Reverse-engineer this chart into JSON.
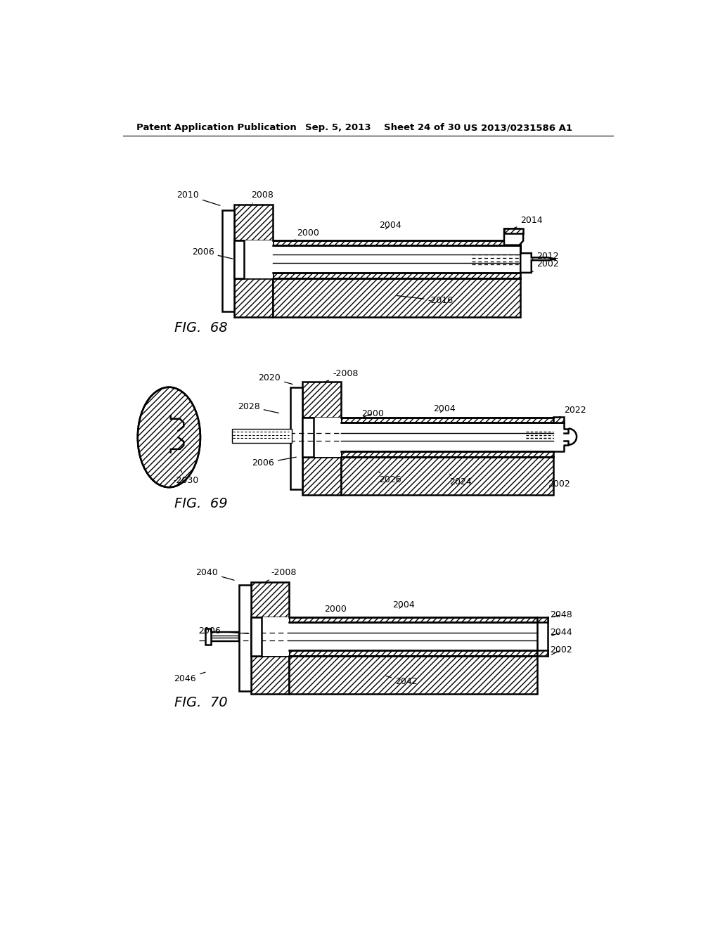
{
  "background_color": "#ffffff",
  "header_text": "Patent Application Publication",
  "header_date": "Sep. 5, 2013",
  "header_sheet": "Sheet 24 of 30",
  "header_patent": "US 2013/0231586 A1",
  "fig68_label": "FIG.  68",
  "fig69_label": "FIG.  69",
  "fig70_label": "FIG.  70",
  "line_color": "#000000",
  "text_color": "#000000"
}
